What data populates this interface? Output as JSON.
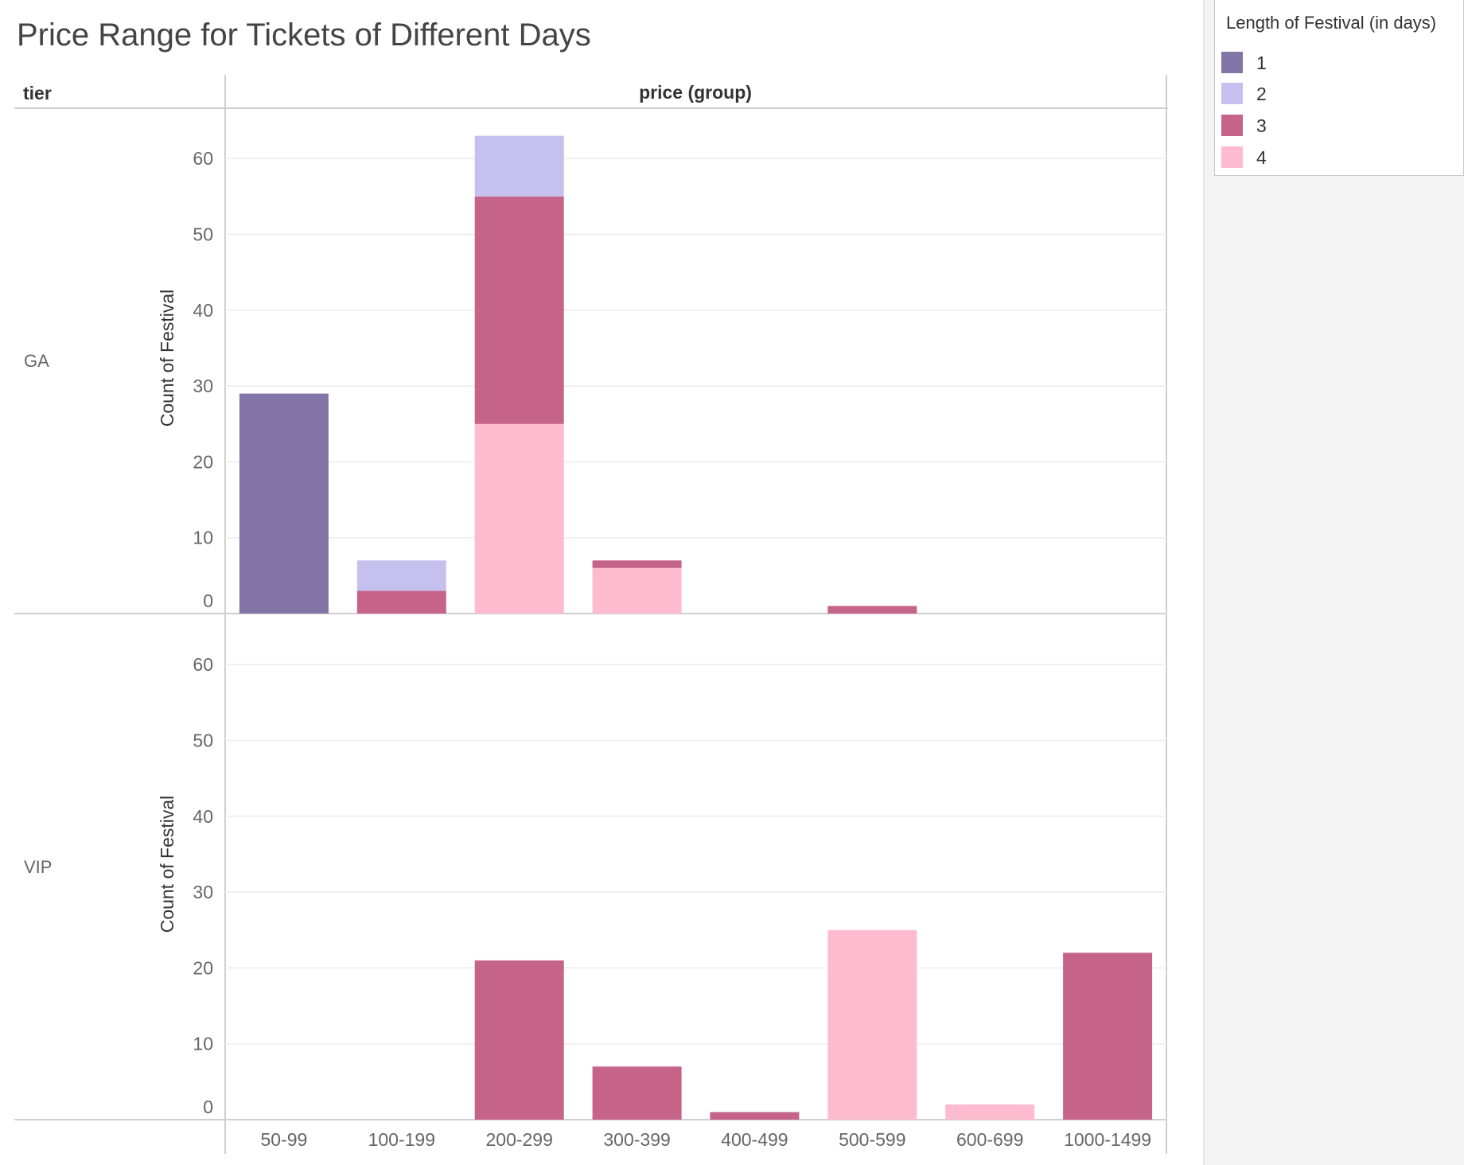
{
  "chart_data": {
    "type": "bar",
    "stacked": true,
    "title": "Price Range for Tickets of Different Days",
    "row_header": "tier",
    "column_header": "price (group)",
    "ylabel": "Count of Festival",
    "ylim": [
      0,
      66
    ],
    "yticks": [
      0,
      10,
      20,
      30,
      40,
      50,
      60
    ],
    "grid": true,
    "categories": [
      "50-99",
      "100-199",
      "200-299",
      "300-399",
      "400-499",
      "500-599",
      "600-699",
      "1000-1499"
    ],
    "legend": {
      "title": "Length of Festival (in days)",
      "placement": "top-right",
      "items": [
        {
          "label": "1",
          "color": "#8375a8"
        },
        {
          "label": "2",
          "color": "#c6c0ef"
        },
        {
          "label": "3",
          "color": "#c56487"
        },
        {
          "label": "4",
          "color": "#febbd0"
        }
      ]
    },
    "panels": [
      {
        "tier": "GA",
        "series": [
          {
            "name": "1",
            "values": [
              29,
              0,
              0,
              0,
              0,
              0,
              0,
              0
            ]
          },
          {
            "name": "2",
            "values": [
              0,
              4,
              8,
              0,
              0,
              0,
              0,
              0
            ]
          },
          {
            "name": "3",
            "values": [
              0,
              3,
              30,
              1,
              0,
              1,
              0,
              0
            ]
          },
          {
            "name": "4",
            "values": [
              0,
              0,
              25,
              6,
              0,
              0,
              0,
              0
            ]
          }
        ]
      },
      {
        "tier": "VIP",
        "series": [
          {
            "name": "1",
            "values": [
              0,
              0,
              0,
              0,
              0,
              0,
              0,
              0
            ]
          },
          {
            "name": "2",
            "values": [
              0,
              0,
              0,
              0,
              0,
              0,
              0,
              0
            ]
          },
          {
            "name": "3",
            "values": [
              0,
              0,
              21,
              7,
              1,
              0,
              0,
              22
            ]
          },
          {
            "name": "4",
            "values": [
              0,
              0,
              0,
              0,
              0,
              25,
              2,
              0
            ]
          }
        ]
      }
    ]
  }
}
